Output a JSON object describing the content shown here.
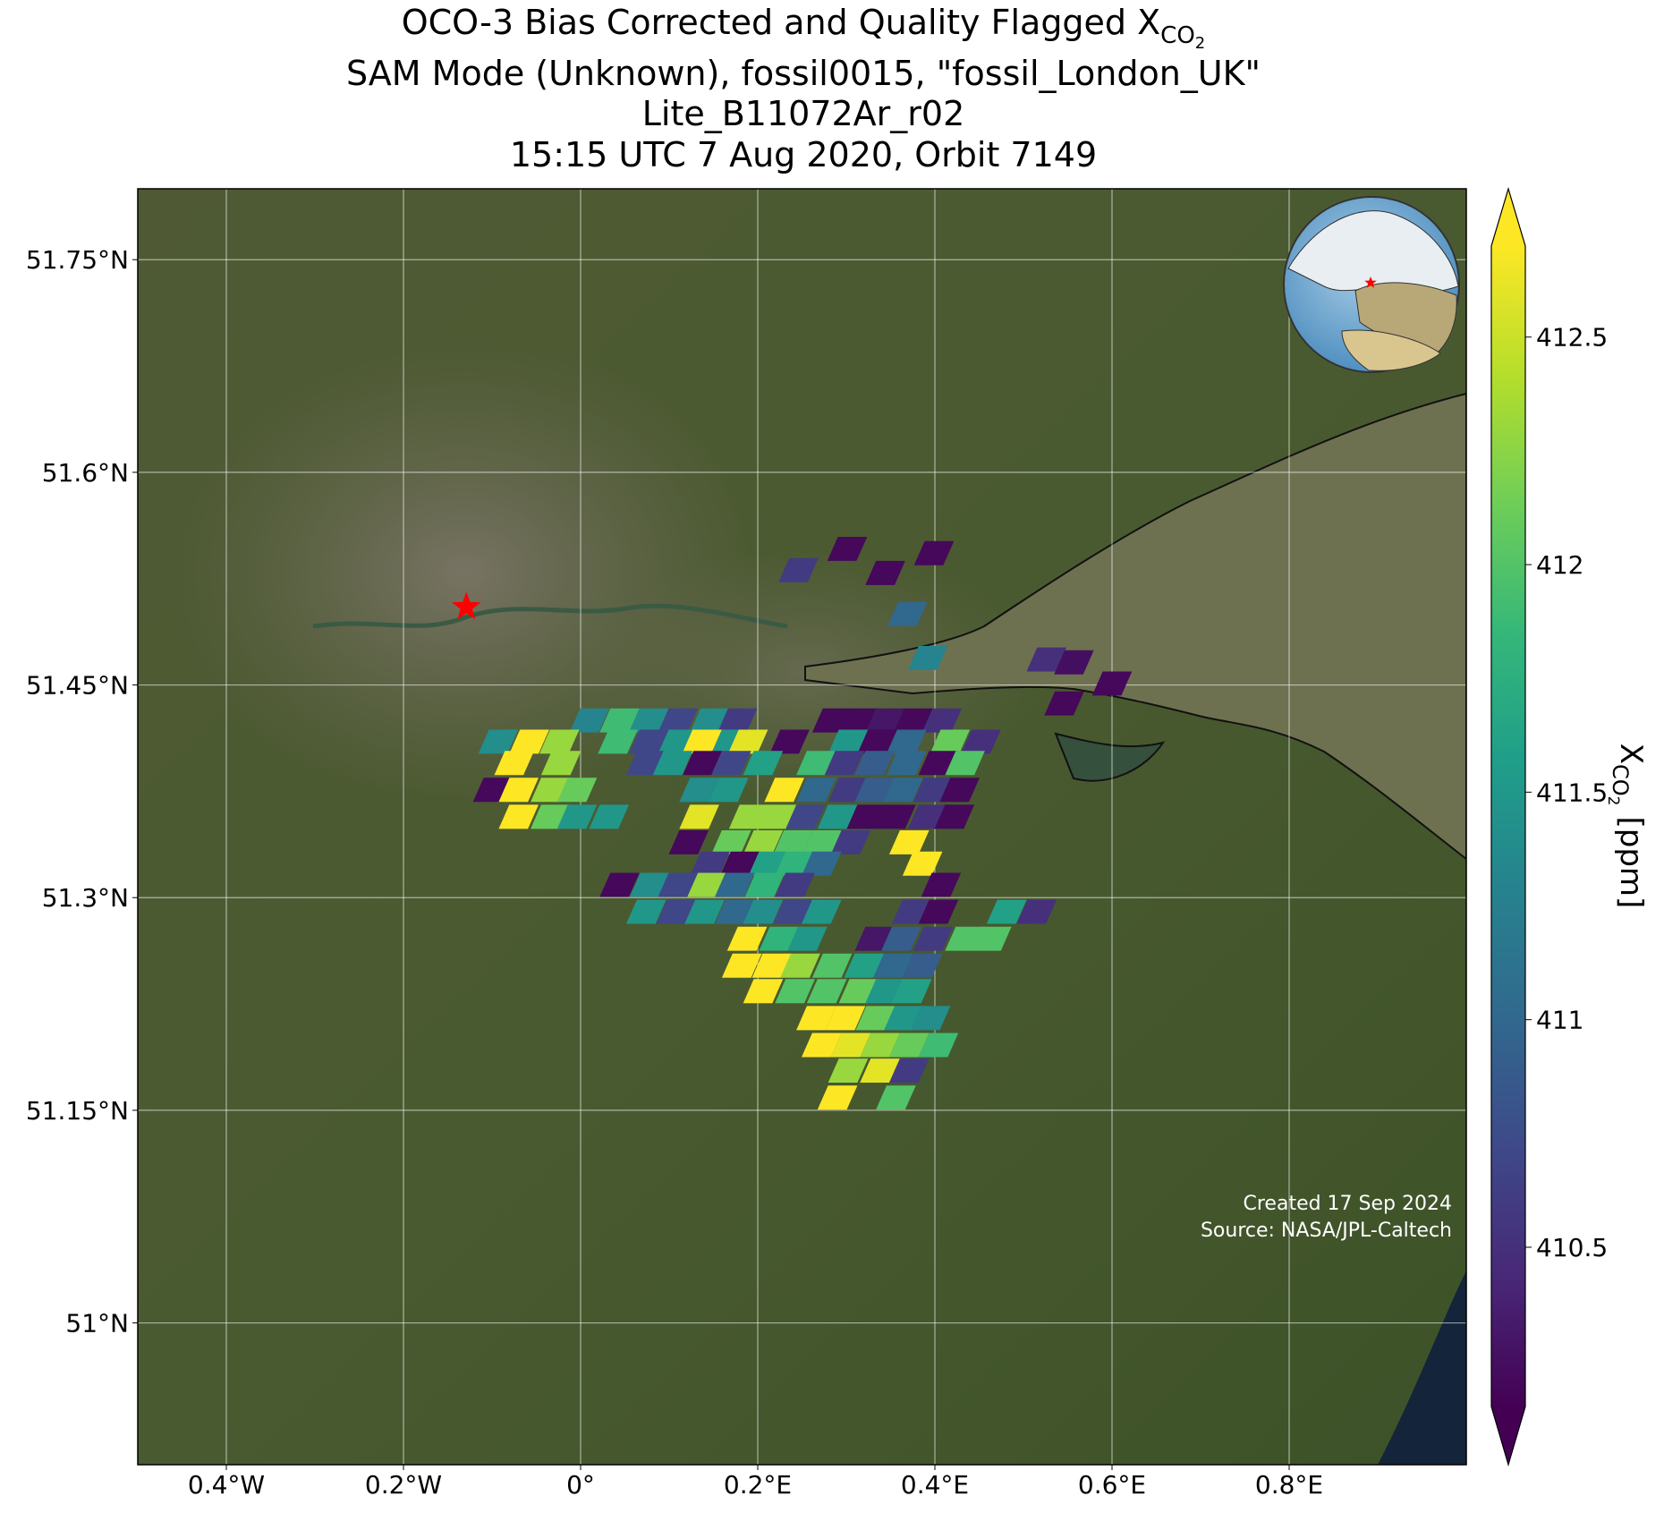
{
  "chart_data": {
    "type": "map",
    "title": {
      "text": "OCO-3 Bias Corrected and Quality Flagged X",
      "subscript": "CO",
      "subsubscript": "2"
    },
    "subtitle": [
      "SAM Mode (Unknown), fossil0015, \"fossil_London_UK\"",
      "Lite_B11072Ar_r02",
      "15:15 UTC 7 Aug 2020, Orbit 7149"
    ],
    "xlim": [
      -0.5,
      1.0
    ],
    "ylim": [
      50.9,
      51.8
    ],
    "xticks": [
      {
        "value": -0.4,
        "label": "0.4°W"
      },
      {
        "value": -0.2,
        "label": "0.2°W"
      },
      {
        "value": 0,
        "label": "0°"
      },
      {
        "value": 0.2,
        "label": "0.2°E"
      },
      {
        "value": 0.4,
        "label": "0.4°E"
      },
      {
        "value": 0.6,
        "label": "0.6°E"
      },
      {
        "value": 0.8,
        "label": "0.8°E"
      }
    ],
    "yticks": [
      {
        "value": 51.0,
        "label": "51°N"
      },
      {
        "value": 51.15,
        "label": "51.15°N"
      },
      {
        "value": 51.3,
        "label": "51.3°N"
      },
      {
        "value": 51.45,
        "label": "51.45°N"
      },
      {
        "value": 51.6,
        "label": "51.6°N"
      },
      {
        "value": 51.75,
        "label": "51.75°N"
      }
    ],
    "grid": true,
    "colormap": "viridis",
    "clim": [
      410.15,
      412.7
    ],
    "colorbar": {
      "label": "X",
      "subscript": "CO",
      "subsubscript": "2",
      "unit": "[ppm]",
      "ticks": [
        410.5,
        411.0,
        411.5,
        412.0,
        412.5
      ]
    },
    "target": {
      "lon": -0.129,
      "lat": 51.505,
      "color": "#ff0000"
    },
    "footer": [
      "Created 17 Sep 2024",
      "Source: NASA/JPL-Caltech"
    ],
    "footprints": [
      {
        "lon": 0.246,
        "lat": 51.531,
        "xco2": 410.6
      },
      {
        "lon": 0.301,
        "lat": 51.546,
        "xco2": 410.2
      },
      {
        "lon": 0.344,
        "lat": 51.529,
        "xco2": 410.2
      },
      {
        "lon": 0.399,
        "lat": 51.543,
        "xco2": 410.2
      },
      {
        "lon": 0.369,
        "lat": 51.5,
        "xco2": 411.0
      },
      {
        "lon": 0.392,
        "lat": 51.469,
        "xco2": 411.3
      },
      {
        "lon": 0.526,
        "lat": 51.468,
        "xco2": 410.5
      },
      {
        "lon": 0.557,
        "lat": 51.466,
        "xco2": 410.25
      },
      {
        "lon": 0.6,
        "lat": 51.451,
        "xco2": 410.2
      },
      {
        "lon": 0.546,
        "lat": 51.437,
        "xco2": 410.2
      },
      {
        "lon": 0.01,
        "lat": 51.425,
        "xco2": 411.3
      },
      {
        "lon": 0.044,
        "lat": 51.425,
        "xco2": 411.9
      },
      {
        "lon": 0.077,
        "lat": 51.425,
        "xco2": 411.4
      },
      {
        "lon": 0.11,
        "lat": 51.425,
        "xco2": 410.7
      },
      {
        "lon": 0.146,
        "lat": 51.425,
        "xco2": 411.4
      },
      {
        "lon": 0.177,
        "lat": 51.425,
        "xco2": 410.6
      },
      {
        "lon": 0.284,
        "lat": 51.425,
        "xco2": 410.2
      },
      {
        "lon": 0.314,
        "lat": 51.425,
        "xco2": 410.2
      },
      {
        "lon": 0.344,
        "lat": 51.425,
        "xco2": 410.3
      },
      {
        "lon": 0.376,
        "lat": 51.425,
        "xco2": 410.2
      },
      {
        "lon": 0.408,
        "lat": 51.425,
        "xco2": 410.5
      },
      {
        "lon": -0.093,
        "lat": 51.41,
        "xco2": 411.4
      },
      {
        "lon": -0.058,
        "lat": 51.41,
        "xco2": 412.7
      },
      {
        "lon": -0.024,
        "lat": 51.41,
        "xco2": 412.3
      },
      {
        "lon": 0.042,
        "lat": 51.41,
        "xco2": 411.9
      },
      {
        "lon": 0.077,
        "lat": 51.41,
        "xco2": 410.7
      },
      {
        "lon": 0.11,
        "lat": 51.41,
        "xco2": 411.5
      },
      {
        "lon": 0.137,
        "lat": 51.41,
        "xco2": 412.7
      },
      {
        "lon": 0.17,
        "lat": 51.41,
        "xco2": 411.5
      },
      {
        "lon": 0.189,
        "lat": 51.41,
        "xco2": 412.6
      },
      {
        "lon": 0.236,
        "lat": 51.41,
        "xco2": 410.2
      },
      {
        "lon": 0.302,
        "lat": 51.41,
        "xco2": 411.5
      },
      {
        "lon": 0.335,
        "lat": 51.41,
        "xco2": 410.2
      },
      {
        "lon": 0.368,
        "lat": 51.41,
        "xco2": 411.0
      },
      {
        "lon": 0.417,
        "lat": 51.41,
        "xco2": 412.1
      },
      {
        "lon": 0.452,
        "lat": 51.41,
        "xco2": 410.5
      },
      {
        "lon": -0.075,
        "lat": 51.395,
        "xco2": 412.7
      },
      {
        "lon": -0.022,
        "lat": 51.395,
        "xco2": 412.3
      },
      {
        "lon": 0.074,
        "lat": 51.395,
        "xco2": 410.7
      },
      {
        "lon": 0.104,
        "lat": 51.395,
        "xco2": 411.5
      },
      {
        "lon": 0.138,
        "lat": 51.395,
        "xco2": 410.2
      },
      {
        "lon": 0.17,
        "lat": 51.395,
        "xco2": 410.7
      },
      {
        "lon": 0.206,
        "lat": 51.395,
        "xco2": 411.6
      },
      {
        "lon": 0.266,
        "lat": 51.395,
        "xco2": 411.9
      },
      {
        "lon": 0.298,
        "lat": 51.395,
        "xco2": 410.6
      },
      {
        "lon": 0.332,
        "lat": 51.395,
        "xco2": 410.9
      },
      {
        "lon": 0.368,
        "lat": 51.395,
        "xco2": 411.0
      },
      {
        "lon": 0.404,
        "lat": 51.395,
        "xco2": 410.2
      },
      {
        "lon": 0.434,
        "lat": 51.395,
        "xco2": 412.0
      },
      {
        "lon": -0.099,
        "lat": 51.376,
        "xco2": 410.2
      },
      {
        "lon": -0.07,
        "lat": 51.376,
        "xco2": 412.7
      },
      {
        "lon": -0.034,
        "lat": 51.376,
        "xco2": 412.3
      },
      {
        "lon": -0.004,
        "lat": 51.376,
        "xco2": 412.1
      },
      {
        "lon": 0.134,
        "lat": 51.376,
        "xco2": 411.4
      },
      {
        "lon": 0.167,
        "lat": 51.376,
        "xco2": 411.5
      },
      {
        "lon": 0.23,
        "lat": 51.376,
        "xco2": 412.7
      },
      {
        "lon": 0.266,
        "lat": 51.376,
        "xco2": 411.0
      },
      {
        "lon": 0.302,
        "lat": 51.376,
        "xco2": 410.6
      },
      {
        "lon": 0.332,
        "lat": 51.376,
        "xco2": 410.9
      },
      {
        "lon": 0.364,
        "lat": 51.376,
        "xco2": 411.0
      },
      {
        "lon": 0.398,
        "lat": 51.376,
        "xco2": 410.6
      },
      {
        "lon": 0.428,
        "lat": 51.376,
        "xco2": 410.2
      },
      {
        "lon": -0.07,
        "lat": 51.357,
        "xco2": 412.7
      },
      {
        "lon": -0.034,
        "lat": 51.357,
        "xco2": 412.1
      },
      {
        "lon": -0.004,
        "lat": 51.357,
        "xco2": 411.5
      },
      {
        "lon": 0.032,
        "lat": 51.357,
        "xco2": 411.5
      },
      {
        "lon": 0.134,
        "lat": 51.357,
        "xco2": 412.6
      },
      {
        "lon": 0.19,
        "lat": 51.357,
        "xco2": 412.3
      },
      {
        "lon": 0.222,
        "lat": 51.357,
        "xco2": 412.3
      },
      {
        "lon": 0.254,
        "lat": 51.357,
        "xco2": 410.7
      },
      {
        "lon": 0.29,
        "lat": 51.357,
        "xco2": 411.5
      },
      {
        "lon": 0.323,
        "lat": 51.357,
        "xco2": 410.2
      },
      {
        "lon": 0.356,
        "lat": 51.357,
        "xco2": 410.2
      },
      {
        "lon": 0.392,
        "lat": 51.357,
        "xco2": 410.5
      },
      {
        "lon": 0.422,
        "lat": 51.357,
        "xco2": 410.2
      },
      {
        "lon": 0.122,
        "lat": 51.339,
        "xco2": 410.2
      },
      {
        "lon": 0.17,
        "lat": 51.339,
        "xco2": 412.1
      },
      {
        "lon": 0.206,
        "lat": 51.339,
        "xco2": 412.3
      },
      {
        "lon": 0.24,
        "lat": 51.339,
        "xco2": 412.0
      },
      {
        "lon": 0.273,
        "lat": 51.339,
        "xco2": 412.0
      },
      {
        "lon": 0.305,
        "lat": 51.339,
        "xco2": 410.6
      },
      {
        "lon": 0.371,
        "lat": 51.339,
        "xco2": 412.7
      },
      {
        "lon": 0.146,
        "lat": 51.324,
        "xco2": 410.6
      },
      {
        "lon": 0.18,
        "lat": 51.324,
        "xco2": 410.2
      },
      {
        "lon": 0.212,
        "lat": 51.324,
        "xco2": 411.6
      },
      {
        "lon": 0.242,
        "lat": 51.324,
        "xco2": 411.8
      },
      {
        "lon": 0.272,
        "lat": 51.324,
        "xco2": 411.0
      },
      {
        "lon": 0.386,
        "lat": 51.324,
        "xco2": 412.7
      },
      {
        "lon": 0.044,
        "lat": 51.309,
        "xco2": 410.2
      },
      {
        "lon": 0.078,
        "lat": 51.309,
        "xco2": 411.4
      },
      {
        "lon": 0.11,
        "lat": 51.309,
        "xco2": 410.7
      },
      {
        "lon": 0.143,
        "lat": 51.309,
        "xco2": 412.3
      },
      {
        "lon": 0.174,
        "lat": 51.309,
        "xco2": 411.0
      },
      {
        "lon": 0.208,
        "lat": 51.309,
        "xco2": 411.8
      },
      {
        "lon": 0.242,
        "lat": 51.309,
        "xco2": 410.6
      },
      {
        "lon": 0.407,
        "lat": 51.309,
        "xco2": 410.2
      },
      {
        "lon": 0.074,
        "lat": 51.29,
        "xco2": 411.5
      },
      {
        "lon": 0.108,
        "lat": 51.29,
        "xco2": 410.7
      },
      {
        "lon": 0.14,
        "lat": 51.29,
        "xco2": 411.5
      },
      {
        "lon": 0.174,
        "lat": 51.29,
        "xco2": 411.0
      },
      {
        "lon": 0.206,
        "lat": 51.29,
        "xco2": 411.4
      },
      {
        "lon": 0.24,
        "lat": 51.29,
        "xco2": 410.7
      },
      {
        "lon": 0.272,
        "lat": 51.29,
        "xco2": 411.5
      },
      {
        "lon": 0.374,
        "lat": 51.29,
        "xco2": 410.6
      },
      {
        "lon": 0.404,
        "lat": 51.29,
        "xco2": 410.2
      },
      {
        "lon": 0.481,
        "lat": 51.29,
        "xco2": 411.6
      },
      {
        "lon": 0.515,
        "lat": 51.29,
        "xco2": 410.5
      },
      {
        "lon": 0.188,
        "lat": 51.271,
        "xco2": 412.7
      },
      {
        "lon": 0.224,
        "lat": 51.271,
        "xco2": 411.8
      },
      {
        "lon": 0.256,
        "lat": 51.271,
        "xco2": 411.5
      },
      {
        "lon": 0.332,
        "lat": 51.271,
        "xco2": 410.3
      },
      {
        "lon": 0.362,
        "lat": 51.271,
        "xco2": 410.9
      },
      {
        "lon": 0.398,
        "lat": 51.271,
        "xco2": 410.6
      },
      {
        "lon": 0.434,
        "lat": 51.271,
        "xco2": 412.0
      },
      {
        "lon": 0.464,
        "lat": 51.271,
        "xco2": 412.0
      },
      {
        "lon": 0.182,
        "lat": 51.252,
        "xco2": 412.7
      },
      {
        "lon": 0.216,
        "lat": 51.252,
        "xco2": 412.7
      },
      {
        "lon": 0.248,
        "lat": 51.252,
        "xco2": 412.3
      },
      {
        "lon": 0.284,
        "lat": 51.252,
        "xco2": 412.0
      },
      {
        "lon": 0.32,
        "lat": 51.252,
        "xco2": 411.6
      },
      {
        "lon": 0.353,
        "lat": 51.252,
        "xco2": 411.0
      },
      {
        "lon": 0.386,
        "lat": 51.252,
        "xco2": 410.9
      },
      {
        "lon": 0.206,
        "lat": 51.234,
        "xco2": 412.7
      },
      {
        "lon": 0.242,
        "lat": 51.234,
        "xco2": 412.0
      },
      {
        "lon": 0.278,
        "lat": 51.234,
        "xco2": 412.0
      },
      {
        "lon": 0.314,
        "lat": 51.234,
        "xco2": 412.1
      },
      {
        "lon": 0.344,
        "lat": 51.234,
        "xco2": 411.5
      },
      {
        "lon": 0.374,
        "lat": 51.234,
        "xco2": 411.6
      },
      {
        "lon": 0.266,
        "lat": 51.215,
        "xco2": 412.7
      },
      {
        "lon": 0.299,
        "lat": 51.215,
        "xco2": 412.7
      },
      {
        "lon": 0.333,
        "lat": 51.215,
        "xco2": 412.1
      },
      {
        "lon": 0.365,
        "lat": 51.215,
        "xco2": 411.5
      },
      {
        "lon": 0.395,
        "lat": 51.215,
        "xco2": 411.4
      },
      {
        "lon": 0.272,
        "lat": 51.196,
        "xco2": 412.7
      },
      {
        "lon": 0.305,
        "lat": 51.196,
        "xco2": 412.6
      },
      {
        "lon": 0.338,
        "lat": 51.196,
        "xco2": 412.3
      },
      {
        "lon": 0.371,
        "lat": 51.196,
        "xco2": 412.1
      },
      {
        "lon": 0.404,
        "lat": 51.196,
        "xco2": 411.9
      },
      {
        "lon": 0.302,
        "lat": 51.178,
        "xco2": 412.3
      },
      {
        "lon": 0.338,
        "lat": 51.178,
        "xco2": 412.6
      },
      {
        "lon": 0.371,
        "lat": 51.178,
        "xco2": 410.6
      },
      {
        "lon": 0.29,
        "lat": 51.159,
        "xco2": 412.7
      },
      {
        "lon": 0.356,
        "lat": 51.159,
        "xco2": 412.0
      }
    ]
  }
}
